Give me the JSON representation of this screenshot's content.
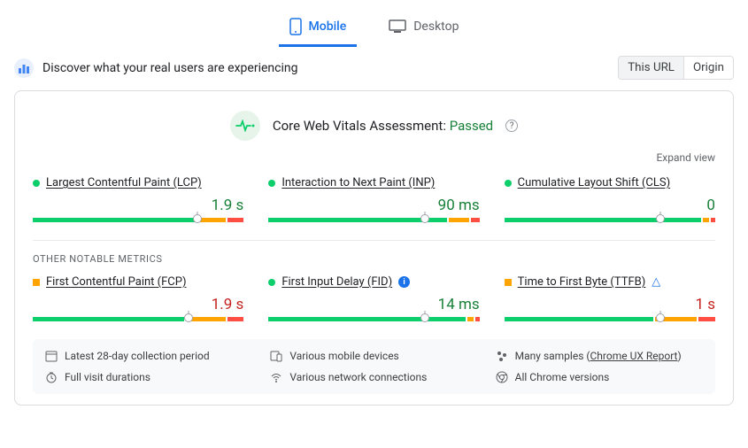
{
  "tabs": {
    "mobile": "Mobile",
    "desktop": "Desktop",
    "active": "mobile"
  },
  "header": {
    "title": "Discover what your real users are experiencing",
    "toggle": {
      "thisUrl": "This URL",
      "origin": "Origin",
      "active": "thisUrl"
    }
  },
  "assessment": {
    "label": "Core Web Vitals Assessment:",
    "status": "Passed",
    "status_color": "#188038",
    "expand": "Expand view"
  },
  "colors": {
    "good": "#0cce6b",
    "improve": "#ffa400",
    "poor": "#ff4e42",
    "good_text": "#188038",
    "warn_text": "#c5221f"
  },
  "core": [
    {
      "id": "lcp",
      "name": "Largest Contentful Paint (LCP)",
      "value": "1.9 s",
      "status": "g",
      "segments": [
        78,
        14,
        8
      ],
      "marker": 78
    },
    {
      "id": "inp",
      "name": "Interaction to Next Paint (INP)",
      "value": "90 ms",
      "status": "g",
      "segments": [
        86,
        10,
        4
      ],
      "marker": 74
    },
    {
      "id": "cls",
      "name": "Cumulative Layout Shift (CLS)",
      "value": "0",
      "status": "g",
      "segments": [
        95,
        3,
        2
      ],
      "marker": 74
    }
  ],
  "other_label": "OTHER NOTABLE METRICS",
  "other": [
    {
      "id": "fcp",
      "name": "First Contentful Paint (FCP)",
      "value": "1.9 s",
      "status": "o",
      "segments": [
        73,
        19,
        8
      ],
      "marker": 74,
      "val_color": "o"
    },
    {
      "id": "fid",
      "name": "First Input Delay (FID)",
      "value": "14 ms",
      "status": "g",
      "badge": "info",
      "segments": [
        95,
        3,
        2
      ],
      "marker": 74
    },
    {
      "id": "ttfb",
      "name": "Time to First Byte (TTFB)",
      "value": "1 s",
      "status": "o",
      "badge": "tri",
      "segments": [
        72,
        20,
        8
      ],
      "marker": 74,
      "val_color": "o"
    }
  ],
  "footer": {
    "period": "Latest 28-day collection period",
    "devices": "Various mobile devices",
    "samples": "Many samples",
    "samples_link": "Chrome UX Report",
    "durations": "Full visit durations",
    "network": "Various network connections",
    "versions": "All Chrome versions"
  }
}
